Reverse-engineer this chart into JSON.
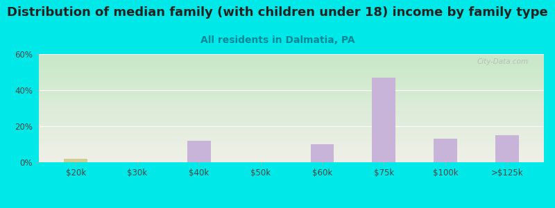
{
  "title": "Distribution of median family (with children under 18) income by family type",
  "subtitle": "All residents in Dalmatia, PA",
  "categories": [
    "$20k",
    "$30k",
    "$40k",
    "$50k",
    "$60k",
    "$75k",
    "$100k",
    ">$125k"
  ],
  "married_couple": [
    0,
    0,
    12,
    0,
    10,
    47,
    13,
    15
  ],
  "female_no_husband": [
    2,
    0,
    0,
    0,
    0,
    0,
    0,
    0
  ],
  "married_color": "#c8b4d8",
  "female_color": "#d4cc90",
  "background_color": "#00e8e8",
  "plot_bg_top": "#c8e8c8",
  "plot_bg_bottom": "#f0f0e8",
  "ylim": [
    0,
    60
  ],
  "yticks": [
    0,
    20,
    40,
    60
  ],
  "ytick_labels": [
    "0%",
    "20%",
    "40%",
    "60%"
  ],
  "title_fontsize": 13,
  "subtitle_fontsize": 10,
  "subtitle_color": "#008899",
  "watermark": "City-Data.com",
  "bar_width": 0.38
}
